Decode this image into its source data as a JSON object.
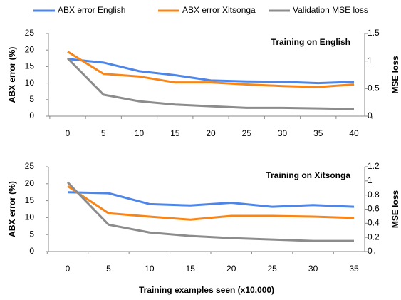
{
  "chart_data": [
    {
      "type": "line",
      "annotation": "Training on English",
      "ylabel": "ABX error (%)",
      "y2label": "MSE loss",
      "categories": [
        "0",
        "5",
        "10",
        "15",
        "20",
        "25",
        "30",
        "35",
        "40"
      ],
      "series": [
        {
          "name": "ABX error English",
          "color": "#4d86e8",
          "values": [
            17.3,
            16.2,
            13.6,
            12.4,
            10.8,
            10.5,
            10.4,
            10.0,
            10.4
          ]
        },
        {
          "name": "ABX error Xitsonga",
          "color": "#f7861a",
          "values": [
            19.5,
            12.8,
            12.0,
            10.2,
            10.2,
            9.6,
            9.1,
            8.8,
            9.6
          ]
        },
        {
          "name": "Validation MSE loss",
          "color": "#8c8c8c",
          "axis": "y2",
          "values": [
            1.05,
            0.39,
            0.27,
            0.21,
            0.18,
            0.15,
            0.15,
            0.14,
            0.13
          ]
        }
      ],
      "ylim": [
        0,
        25
      ],
      "yticks": [
        0,
        5,
        10,
        15,
        20,
        25
      ],
      "y2lim": [
        0,
        1.5
      ],
      "y2ticks": [
        0,
        0.5,
        1,
        1.5
      ],
      "grid": false
    },
    {
      "type": "line",
      "annotation": "Training on Xitsonga",
      "ylabel": "ABX error (%)",
      "y2label": "MSE loss",
      "xlabel": "Training examples seen (x10,000)",
      "categories": [
        "0",
        "5",
        "10",
        "15",
        "20",
        "25",
        "30",
        "35"
      ],
      "series": [
        {
          "color": "#4d86e8",
          "values": [
            17.5,
            17.2,
            14.0,
            13.6,
            14.4,
            13.2,
            13.7,
            13.2
          ]
        },
        {
          "color": "#f7861a",
          "values": [
            19.3,
            11.3,
            10.3,
            9.4,
            10.5,
            10.5,
            10.3,
            9.9
          ]
        },
        {
          "color": "#8c8c8c",
          "axis": "y2",
          "values": [
            0.98,
            0.38,
            0.27,
            0.22,
            0.19,
            0.17,
            0.15,
            0.15
          ]
        }
      ],
      "ylim": [
        0,
        25
      ],
      "yticks": [
        0,
        5,
        10,
        15,
        20,
        25
      ],
      "y2lim": [
        0,
        1.2
      ],
      "y2ticks": [
        0,
        0.2,
        0.4,
        0.6,
        0.8,
        1,
        1.2
      ],
      "grid": false
    }
  ]
}
